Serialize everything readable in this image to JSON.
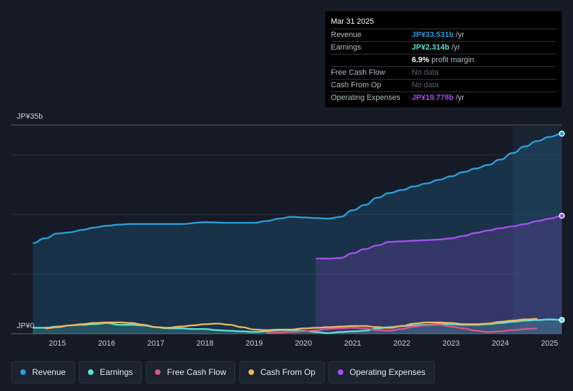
{
  "chart_data": {
    "type": "area",
    "currency_unit": "JP¥ billions",
    "y_axis_labels": {
      "top": "JP¥35b",
      "bottom": "JP¥0"
    },
    "ylim": [
      0,
      35
    ],
    "xlim": [
      2014.5,
      2025.25
    ],
    "x_ticks": [
      "2015",
      "2016",
      "2017",
      "2018",
      "2019",
      "2020",
      "2021",
      "2022",
      "2023",
      "2024",
      "2025"
    ],
    "series": [
      {
        "name": "Revenue",
        "color": "#2d9cdb",
        "fill": true,
        "x": [
          2014.5,
          2014.75,
          2015.0,
          2015.25,
          2015.5,
          2015.75,
          2016.0,
          2016.25,
          2016.5,
          2016.75,
          2017.0,
          2017.5,
          2018.0,
          2018.5,
          2019.0,
          2019.25,
          2019.5,
          2019.75,
          2020.0,
          2020.25,
          2020.5,
          2020.75,
          2021.0,
          2021.25,
          2021.5,
          2021.75,
          2022.0,
          2022.25,
          2022.5,
          2022.75,
          2023.0,
          2023.25,
          2023.5,
          2023.75,
          2024.0,
          2024.25,
          2024.5,
          2024.75,
          2025.0,
          2025.25
        ],
        "values": [
          15.2,
          16.0,
          16.8,
          17.0,
          17.4,
          17.8,
          18.1,
          18.3,
          18.4,
          18.4,
          18.4,
          18.4,
          18.7,
          18.6,
          18.6,
          18.9,
          19.3,
          19.6,
          19.5,
          19.4,
          19.3,
          19.6,
          20.7,
          21.6,
          22.8,
          23.6,
          24.1,
          24.7,
          25.2,
          25.8,
          26.4,
          27.1,
          27.7,
          28.3,
          29.2,
          30.3,
          31.4,
          32.3,
          33.0,
          33.531
        ]
      },
      {
        "name": "Operating Expenses",
        "color": "#a64ef0",
        "fill": true,
        "x": [
          2020.25,
          2020.5,
          2020.75,
          2021.0,
          2021.25,
          2021.5,
          2021.75,
          2022.0,
          2022.25,
          2022.5,
          2022.75,
          2023.0,
          2023.25,
          2023.5,
          2023.75,
          2024.0,
          2024.25,
          2024.5,
          2024.75,
          2025.0,
          2025.25
        ],
        "values": [
          12.6,
          12.6,
          12.7,
          13.5,
          14.2,
          14.8,
          15.4,
          15.5,
          15.6,
          15.7,
          15.8,
          16.0,
          16.4,
          16.9,
          17.3,
          17.7,
          18.0,
          18.4,
          18.9,
          19.3,
          19.778
        ]
      },
      {
        "name": "Earnings",
        "color": "#5ce1d4",
        "fill": true,
        "x": [
          2014.5,
          2014.75,
          2015.0,
          2015.25,
          2015.5,
          2015.75,
          2016.0,
          2016.25,
          2016.5,
          2016.75,
          2017.0,
          2017.25,
          2017.5,
          2017.75,
          2018.0,
          2018.25,
          2018.5,
          2018.75,
          2019.0,
          2019.25,
          2019.5,
          2019.75,
          2020.0,
          2020.25,
          2020.5,
          2020.75,
          2021.0,
          2021.25,
          2021.5,
          2021.75,
          2022.0,
          2022.25,
          2022.5,
          2022.75,
          2023.0,
          2023.25,
          2023.5,
          2023.75,
          2024.0,
          2024.25,
          2024.5,
          2024.75,
          2025.0,
          2025.25
        ],
        "values": [
          1.0,
          1.0,
          1.2,
          1.4,
          1.5,
          1.6,
          1.8,
          1.5,
          1.5,
          1.4,
          1.1,
          0.9,
          0.9,
          0.8,
          0.8,
          0.6,
          0.5,
          0.4,
          0.3,
          0.4,
          0.6,
          0.6,
          0.5,
          0.3,
          0.1,
          0.3,
          0.4,
          0.5,
          0.9,
          1.1,
          1.3,
          1.4,
          1.5,
          1.6,
          1.6,
          1.5,
          1.5,
          1.6,
          1.8,
          2.0,
          2.2,
          2.3,
          2.4,
          2.314
        ]
      },
      {
        "name": "Free Cash Flow",
        "color": "#d6558b",
        "fill": false,
        "x": [
          2019.25,
          2019.5,
          2019.75,
          2020.0,
          2020.25,
          2020.5,
          2020.75,
          2021.0,
          2021.25,
          2021.5,
          2021.75,
          2022.0,
          2022.25,
          2022.5,
          2022.75,
          2023.0,
          2023.25,
          2023.5,
          2023.75,
          2024.0,
          2024.25,
          2024.5,
          2024.75
        ],
        "values": [
          0.1,
          0.2,
          0.3,
          0.4,
          0.6,
          0.8,
          0.9,
          1.0,
          0.9,
          0.6,
          0.5,
          0.8,
          1.2,
          1.4,
          1.5,
          1.2,
          0.9,
          0.5,
          0.3,
          0.4,
          0.6,
          0.8,
          0.9
        ]
      },
      {
        "name": "Cash From Op",
        "color": "#f0b561",
        "fill": false,
        "x": [
          2014.75,
          2015.0,
          2015.25,
          2015.5,
          2015.75,
          2016.0,
          2016.25,
          2016.5,
          2016.75,
          2017.0,
          2017.25,
          2017.5,
          2017.75,
          2018.0,
          2018.25,
          2018.5,
          2018.75,
          2019.0,
          2019.25,
          2019.5,
          2019.75,
          2020.0,
          2020.25,
          2020.5,
          2020.75,
          2021.0,
          2021.25,
          2021.5,
          2021.75,
          2022.0,
          2022.25,
          2022.5,
          2022.75,
          2023.0,
          2023.25,
          2023.5,
          2023.75,
          2024.0,
          2024.25,
          2024.5,
          2024.75
        ],
        "values": [
          0.9,
          1.1,
          1.4,
          1.6,
          1.8,
          1.9,
          1.9,
          1.8,
          1.5,
          1.1,
          1.0,
          1.2,
          1.4,
          1.6,
          1.7,
          1.5,
          1.1,
          0.7,
          0.6,
          0.7,
          0.7,
          0.9,
          1.0,
          1.1,
          1.2,
          1.3,
          1.3,
          1.1,
          1.0,
          1.3,
          1.7,
          1.9,
          1.9,
          1.8,
          1.6,
          1.6,
          1.7,
          2.0,
          2.2,
          2.4,
          2.5
        ]
      }
    ],
    "forecast_band_start": 2024.25
  },
  "tooltip": {
    "date": "Mar 31 2025",
    "rows": [
      {
        "label": "Revenue",
        "value": "JP¥33.531b",
        "unit": " /yr",
        "color": "#2d9cdb"
      },
      {
        "label": "Earnings",
        "value": "JP¥2.314b",
        "unit": " /yr",
        "color": "#5ce1d4"
      },
      {
        "label": "",
        "value": "6.9%",
        "unit": " profit margin",
        "color": "#ffffff"
      },
      {
        "label": "Free Cash Flow",
        "value": "No data",
        "unit": "",
        "color": ""
      },
      {
        "label": "Cash From Op",
        "value": "No data",
        "unit": "",
        "color": ""
      },
      {
        "label": "Operating Expenses",
        "value": "JP¥19.778b",
        "unit": " /yr",
        "color": "#a64ef0"
      }
    ]
  },
  "legend": [
    {
      "label": "Revenue",
      "color": "#2d9cdb"
    },
    {
      "label": "Earnings",
      "color": "#5ce1d4"
    },
    {
      "label": "Free Cash Flow",
      "color": "#d6558b"
    },
    {
      "label": "Cash From Op",
      "color": "#f0b561"
    },
    {
      "label": "Operating Expenses",
      "color": "#a64ef0"
    }
  ]
}
